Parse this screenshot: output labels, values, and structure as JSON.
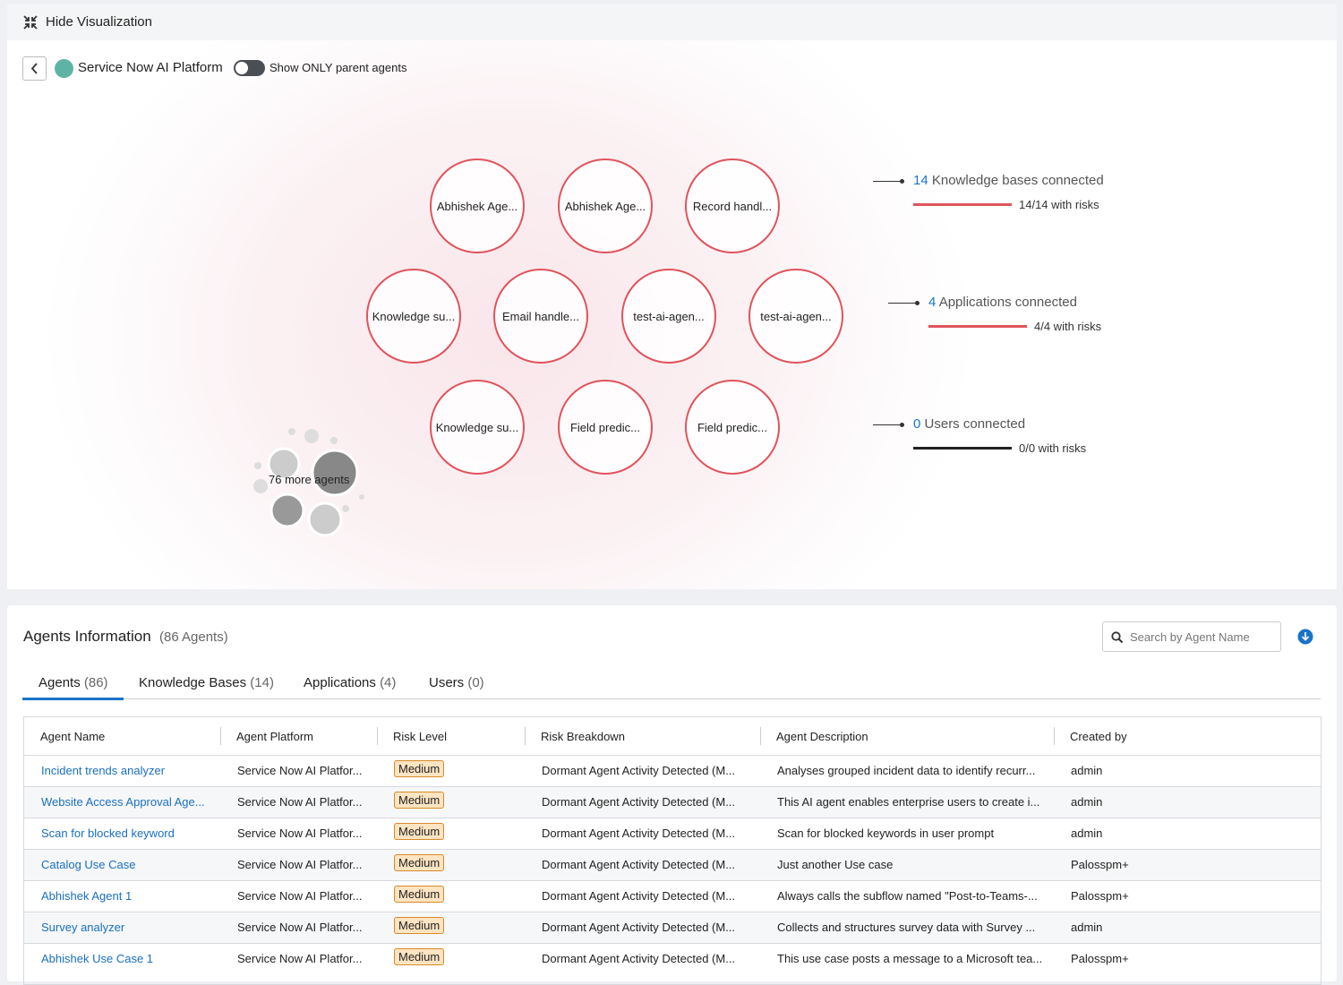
{
  "header": {
    "button": "Hide Visualization"
  },
  "toolbar": {
    "platform": "Service Now AI Platform",
    "toggle_label": "Show ONLY parent agents"
  },
  "graph": {
    "nodes": [
      "Abhishek Age...",
      "Abhishek Age...",
      "Record handl...",
      "Knowledge su...",
      "Email handle...",
      "test-ai-agen...",
      "test-ai-agen...",
      "Knowledge su...",
      "Field predic...",
      "Field predic..."
    ],
    "more_agents": "76 more agents",
    "stats": [
      {
        "count": 14,
        "label": "Knowledge bases connected",
        "risks": "14/14 with risks"
      },
      {
        "count": 4,
        "label": "Applications connected",
        "risks": "4/4 with risks"
      },
      {
        "count": 0,
        "label": "Users connected",
        "risks": "0/0 with risks"
      }
    ]
  },
  "panel": {
    "title": "Agents Information",
    "count": "(86 Agents)",
    "search_placeholder": "Search by Agent Name",
    "tabs": [
      {
        "name": "Agents",
        "count": "(86)"
      },
      {
        "name": "Knowledge Bases",
        "count": "(14)"
      },
      {
        "name": "Applications",
        "count": "(4)"
      },
      {
        "name": "Users",
        "count": "(0)"
      }
    ]
  },
  "table": {
    "columns": [
      "Agent Name",
      "Agent Platform",
      "Risk Level",
      "Risk Breakdown",
      "Agent Description",
      "Created by"
    ],
    "rows": [
      [
        "Incident trends analyzer",
        "Service Now AI Platfor...",
        "Medium",
        "Dormant Agent Activity Detected (M...",
        "Analyses grouped incident data to identify recurr...",
        "admin"
      ],
      [
        "Website Access Approval Age...",
        "Service Now AI Platfor...",
        "Medium",
        "Dormant Agent Activity Detected (M...",
        "This AI agent enables enterprise users to create i...",
        "admin"
      ],
      [
        "Scan for blocked keyword",
        "Service Now AI Platfor...",
        "Medium",
        "Dormant Agent Activity Detected (M...",
        "Scan for blocked keywords in user prompt",
        "admin"
      ],
      [
        "Catalog Use Case",
        "Service Now AI Platfor...",
        "Medium",
        "Dormant Agent Activity Detected (M...",
        "Just another Use case",
        "Palosspm+"
      ],
      [
        "Abhishek Agent 1",
        "Service Now AI Platfor...",
        "Medium",
        "Dormant Agent Activity Detected (M...",
        "Always calls the subflow named \"Post-to-Teams-...",
        "Palosspm+"
      ],
      [
        "Survey analyzer",
        "Service Now AI Platfor...",
        "Medium",
        "Dormant Agent Activity Detected (M...",
        "Collects and structures survey data with Survey ...",
        "admin"
      ],
      [
        "Abhishek Use Case 1",
        "Service Now AI Platfor...",
        "Medium",
        "Dormant Agent Activity Detected (M...",
        "This use case posts a message to a Microsoft tea...",
        "Palosspm+"
      ]
    ]
  }
}
